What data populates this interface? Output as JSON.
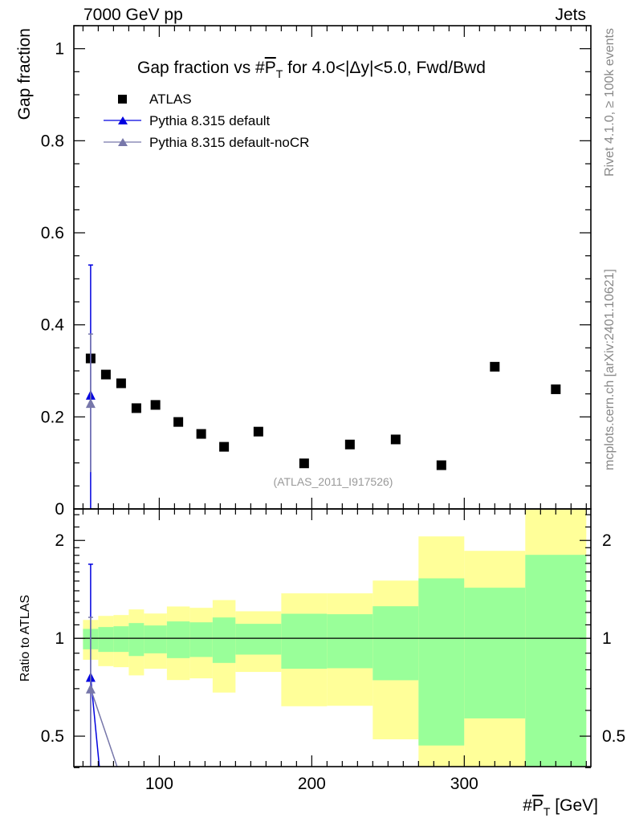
{
  "header": {
    "left": "7000 GeV pp",
    "right": "Jets"
  },
  "side_labels": {
    "rivet": "Rivet 4.1.0, ≥ 100k events",
    "mcplots": "mcplots.cern.ch [arXiv:2401.10621]"
  },
  "colors": {
    "data": "#000000",
    "default": "#0000e0",
    "nocr": "#7777aa",
    "stat_band": "#99ff99",
    "total_band": "#ffff99",
    "side_text": "#888888"
  },
  "chart_data": {
    "type": "scatter",
    "title": {
      "pre": "Gap fraction vs #",
      "var": "P",
      "sub": "T",
      "post": " for 4.0<|Δy|<5.0, Fwd/Bwd"
    },
    "analysis_tag": "(ATLAS_2011_I917526)",
    "xlabel": {
      "pre": "#",
      "var": "P",
      "sub": "T",
      "post": " [GeV]"
    },
    "ylabel": "Gap fraction",
    "ratio_ylabel": "Ratio to ATLAS",
    "xlim": [
      44,
      383
    ],
    "ylim": [
      0,
      1.05
    ],
    "ratio_ylim": [
      0.403,
      2.5
    ],
    "ratio_scale": "log",
    "x_ticks": [
      100,
      200,
      300
    ],
    "y_ticks": [
      0,
      0.2,
      0.4,
      0.6,
      0.8,
      1
    ],
    "y_tick_labels": [
      "0",
      "0.2",
      "0.4",
      "0.6",
      "0.8",
      "1"
    ],
    "ratio_ticks": [
      0.5,
      1,
      2
    ],
    "ratio_tick_labels": [
      "0.5",
      "1",
      "2"
    ],
    "legend_position": "top-left",
    "bin_edges": [
      50,
      60,
      70,
      80,
      90,
      105,
      120,
      135,
      150,
      180,
      210,
      240,
      270,
      300,
      340,
      380
    ],
    "x": [
      55,
      65,
      75,
      85,
      97.5,
      112.5,
      127.5,
      142.5,
      165,
      195,
      225,
      255,
      285,
      320,
      360
    ],
    "series": [
      {
        "name": "ATLAS",
        "marker": "square",
        "values": [
          0.327,
          0.292,
          0.273,
          0.219,
          0.226,
          0.189,
          0.163,
          0.135,
          0.168,
          0.099,
          0.14,
          0.151,
          0.095,
          0.309,
          0.26
        ]
      },
      {
        "name": "Pythia 8.315 default",
        "marker": "triangle",
        "points": [
          {
            "x": 55,
            "y": 0.248,
            "err_lo": 0.0,
            "err_hi": 0.53
          }
        ],
        "ratio_points": [
          {
            "x": 55,
            "r": 0.76,
            "r_hi": 1.69
          },
          {
            "x": 65,
            "r": 0.25
          }
        ]
      },
      {
        "name": "Pythia 8.315 default-noCR",
        "marker": "triangle",
        "points": [
          {
            "x": 55,
            "y": 0.23,
            "err_lo": 0.08,
            "err_hi": 0.38
          }
        ],
        "ratio_points": [
          {
            "x": 55,
            "r": 0.7,
            "r_hi": 1.16
          },
          {
            "x": 75,
            "r": 0.37
          }
        ]
      }
    ],
    "ratio_bands": {
      "stat_hi": [
        1.069,
        1.083,
        1.089,
        1.114,
        1.095,
        1.127,
        1.12,
        1.159,
        1.108,
        1.19,
        1.186,
        1.255,
        1.529,
        1.431,
        1.806
      ],
      "stat_lo": [
        0.925,
        0.908,
        0.908,
        0.882,
        0.899,
        0.869,
        0.876,
        0.84,
        0.891,
        0.806,
        0.809,
        0.743,
        0.468,
        0.567,
        0.3
      ],
      "total_hi": [
        1.139,
        1.172,
        1.179,
        1.227,
        1.192,
        1.253,
        1.241,
        1.311,
        1.211,
        1.375,
        1.375,
        1.505,
        2.058,
        1.858,
        2.8
      ],
      "total_lo": [
        0.859,
        0.821,
        0.815,
        0.769,
        0.806,
        0.744,
        0.753,
        0.681,
        0.788,
        0.618,
        0.62,
        0.489,
        0.3,
        0.3,
        0.3
      ]
    }
  }
}
